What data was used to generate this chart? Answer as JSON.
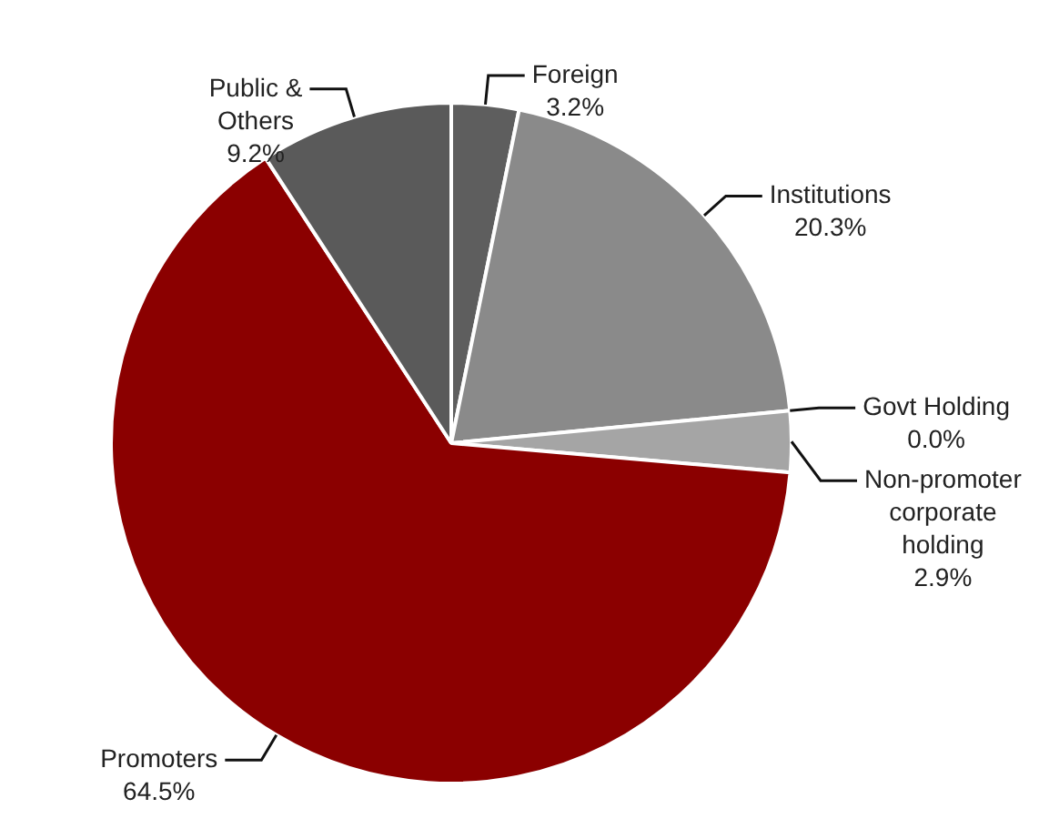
{
  "chart_data": {
    "type": "pie",
    "categories": [
      "Foreign",
      "Institutions",
      "Govt Holding",
      "Non-promoter corporate holding",
      "Promoters",
      "Public & Others"
    ],
    "values": [
      3.2,
      20.3,
      0.0,
      2.9,
      64.5,
      9.2
    ],
    "colors": [
      "#5e5e5e",
      "#8a8a8a",
      "#7a7a7a",
      "#a5a5a5",
      "#8b0000",
      "#5a5a5a"
    ],
    "value_labels": [
      "3.2%",
      "20.3%",
      "0.0%",
      "2.9%",
      "64.5%",
      "9.2%"
    ]
  }
}
